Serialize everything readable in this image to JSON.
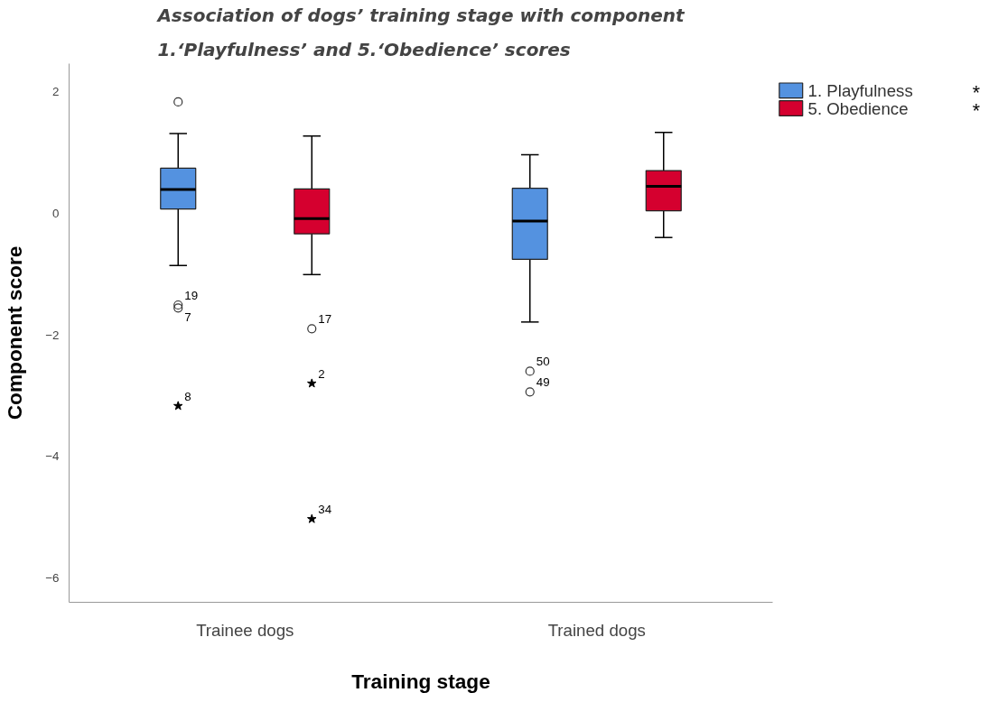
{
  "chart_data": {
    "type": "box",
    "title": "Association of dogs’ training stage with component\n1.‘Playfulness’ and 5.‘Obedience’ scores",
    "xlabel": "Training stage",
    "ylabel": "Component score",
    "categories": [
      "Trainee dogs",
      "Trained dogs"
    ],
    "series": [
      {
        "name": "1. Playfulness",
        "color": "#5492e0",
        "boxes": [
          {
            "low": -0.86,
            "q1": 0.07,
            "median": 0.39,
            "q3": 0.74,
            "high": 1.31,
            "outliers": [
              1.83,
              -1.51,
              -1.56,
              -3.17
            ]
          },
          {
            "low": -1.79,
            "q1": -0.76,
            "median": -0.13,
            "q3": 0.41,
            "high": 0.96,
            "outliers": [
              -2.6,
              -2.94
            ]
          }
        ]
      },
      {
        "name": "5. Obedience",
        "color": "#d5002f",
        "boxes": [
          {
            "low": -1.01,
            "q1": -0.34,
            "median": -0.09,
            "q3": 0.4,
            "high": 1.27,
            "outliers": [
              -1.9,
              -2.8,
              -5.03
            ]
          },
          {
            "low": -0.4,
            "q1": 0.04,
            "median": 0.44,
            "q3": 0.7,
            "high": 1.33
          }
        ]
      }
    ],
    "ylim": [
      -6.4,
      2.46
    ],
    "yticks": [
      -6,
      -4,
      -2,
      0,
      2
    ],
    "legend": "top right",
    "grid": false,
    "annotations": [
      "19",
      "7",
      "8",
      "50",
      "49",
      "17",
      "2",
      "34",
      "*",
      "*"
    ]
  }
}
